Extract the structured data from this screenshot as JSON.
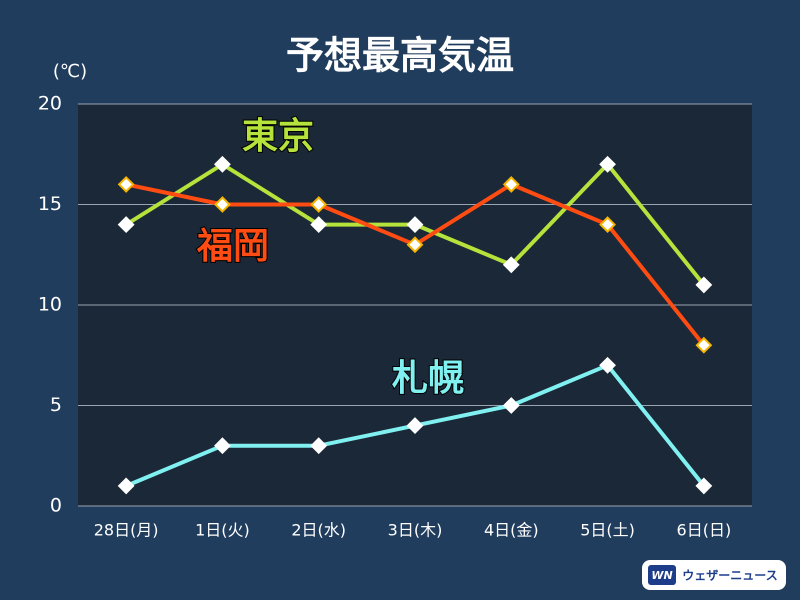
{
  "chart_data": {
    "type": "line",
    "title": "予想最高気温",
    "y_label": "(℃)",
    "categories": [
      "28日(月)",
      "1日(火)",
      "2日(水)",
      "3日(木)",
      "4日(金)",
      "5日(土)",
      "6日(日)"
    ],
    "series": [
      {
        "name": "東京",
        "color": "#b5e23b",
        "values": [
          14,
          17,
          14,
          14,
          12,
          17,
          11
        ]
      },
      {
        "name": "福岡",
        "color": "#ff4c12",
        "values": [
          16,
          15,
          15,
          13,
          16,
          14,
          8
        ]
      },
      {
        "name": "札幌",
        "color": "#80f0f0",
        "values": [
          1,
          3,
          3,
          4,
          5,
          7,
          1
        ]
      }
    ],
    "ylim": [
      0,
      20
    ],
    "yticks": [
      0,
      5,
      10,
      15,
      20
    ],
    "grid": true
  },
  "logo": {
    "mark": "WN",
    "text": "ウェザーニュース"
  }
}
